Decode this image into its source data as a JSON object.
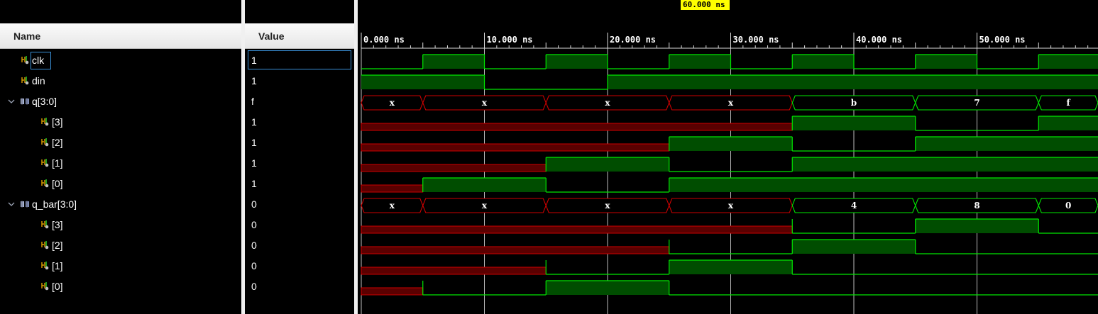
{
  "columns": {
    "name": "Name",
    "value": "Value"
  },
  "cursor": {
    "label": "60.000 ns",
    "time_ns": 60
  },
  "time_axis": {
    "start_ns": 0,
    "labels": [
      "0.000 ns",
      "10.000 ns",
      "20.000 ns",
      "30.000 ns",
      "40.000 ns",
      "50.000 ns"
    ]
  },
  "colors": {
    "background": "#000000",
    "wave_high_fill": "#004d00",
    "wave_line": "#00e600",
    "undefined_line": "#cc0000",
    "undefined_fill": "#5a0000",
    "gridline": "#dcdcdc",
    "cursor": "#ffff00",
    "selection": "#3a8fd6"
  },
  "signals": [
    {
      "name": "clk",
      "value": "1",
      "kind": "bit",
      "icon": "signal-icon",
      "level": 0,
      "transitions": [
        [
          0,
          0
        ],
        [
          5,
          1
        ],
        [
          10,
          0
        ],
        [
          15,
          1
        ],
        [
          20,
          0
        ],
        [
          25,
          1
        ],
        [
          30,
          0
        ],
        [
          35,
          1
        ],
        [
          40,
          0
        ],
        [
          45,
          1
        ],
        [
          50,
          0
        ],
        [
          55,
          1
        ]
      ]
    },
    {
      "name": "din",
      "value": "1",
      "kind": "bit",
      "icon": "signal-icon",
      "level": 0,
      "transitions": [
        [
          0,
          1
        ],
        [
          10,
          0
        ],
        [
          20,
          1
        ]
      ]
    },
    {
      "name": "q[3:0]",
      "value": "f",
      "kind": "bus",
      "icon": "bus-icon",
      "level": 0,
      "segments": [
        [
          0,
          5,
          "x"
        ],
        [
          5,
          15,
          "x"
        ],
        [
          15,
          25,
          "x"
        ],
        [
          25,
          35,
          "x"
        ],
        [
          35,
          45,
          "b"
        ],
        [
          45,
          55,
          "7"
        ],
        [
          55,
          60,
          "f"
        ]
      ],
      "undefined_until": 35
    },
    {
      "name": "[3]",
      "value": "1",
      "kind": "bit",
      "icon": "signal-icon",
      "level": 1,
      "transitions": [
        [
          0,
          "x"
        ],
        [
          35,
          1
        ],
        [
          45,
          0
        ],
        [
          55,
          1
        ]
      ]
    },
    {
      "name": "[2]",
      "value": "1",
      "kind": "bit",
      "icon": "signal-icon",
      "level": 1,
      "transitions": [
        [
          0,
          "x"
        ],
        [
          25,
          1
        ],
        [
          35,
          0
        ],
        [
          45,
          1
        ]
      ]
    },
    {
      "name": "[1]",
      "value": "1",
      "kind": "bit",
      "icon": "signal-icon",
      "level": 1,
      "transitions": [
        [
          0,
          "x"
        ],
        [
          15,
          1
        ],
        [
          25,
          0
        ],
        [
          35,
          1
        ]
      ]
    },
    {
      "name": "[0]",
      "value": "1",
      "kind": "bit",
      "icon": "signal-icon",
      "level": 1,
      "transitions": [
        [
          0,
          "x"
        ],
        [
          5,
          1
        ],
        [
          15,
          0
        ],
        [
          25,
          1
        ]
      ]
    },
    {
      "name": "q_bar[3:0]",
      "value": "0",
      "kind": "bus",
      "icon": "bus-icon",
      "level": 0,
      "segments": [
        [
          0,
          5,
          "x"
        ],
        [
          5,
          15,
          "x"
        ],
        [
          15,
          25,
          "x"
        ],
        [
          25,
          35,
          "x"
        ],
        [
          35,
          45,
          "4"
        ],
        [
          45,
          55,
          "8"
        ],
        [
          55,
          60,
          "0"
        ]
      ],
      "undefined_until": 35
    },
    {
      "name": "[3]",
      "value": "0",
      "kind": "bit",
      "icon": "signal-icon",
      "level": 1,
      "transitions": [
        [
          0,
          "x"
        ],
        [
          35,
          0
        ],
        [
          45,
          1
        ],
        [
          55,
          0
        ]
      ]
    },
    {
      "name": "[2]",
      "value": "0",
      "kind": "bit",
      "icon": "signal-icon",
      "level": 1,
      "transitions": [
        [
          0,
          "x"
        ],
        [
          25,
          0
        ],
        [
          35,
          1
        ],
        [
          45,
          0
        ]
      ]
    },
    {
      "name": "[1]",
      "value": "0",
      "kind": "bit",
      "icon": "signal-icon",
      "level": 1,
      "transitions": [
        [
          0,
          "x"
        ],
        [
          15,
          0
        ],
        [
          25,
          1
        ],
        [
          35,
          0
        ]
      ]
    },
    {
      "name": "[0]",
      "value": "0",
      "kind": "bit",
      "icon": "signal-icon",
      "level": 1,
      "transitions": [
        [
          0,
          "x"
        ],
        [
          5,
          0
        ],
        [
          15,
          1
        ],
        [
          25,
          0
        ]
      ]
    }
  ]
}
